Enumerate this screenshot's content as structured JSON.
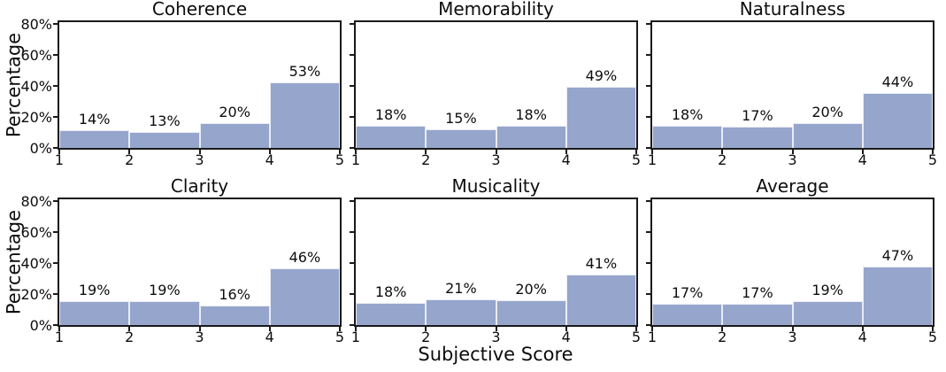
{
  "figure": {
    "ylabel": "Percentage",
    "xlabel": "Subjective Score",
    "colors": {
      "background": "#ffffff",
      "bar_fill": "#96a5cc",
      "bar_edge": "#e9ecf4",
      "axis": "#1a1a1a",
      "text": "#0d0d0d"
    }
  },
  "chart_data": {
    "type": "bar",
    "layout": "2x3 grid of histogram subplots, shared axes style",
    "xlabel": "Subjective Score",
    "ylabel": "Percentage",
    "x_bins": [
      "1-2",
      "2-3",
      "3-4",
      "4-5"
    ],
    "x_tick_labels": [
      "1",
      "2",
      "3",
      "4",
      "5"
    ],
    "y_tick_labels": [
      "0%",
      "20%",
      "40%",
      "60%",
      "80%"
    ],
    "y_tick_values": [
      0,
      20,
      40,
      60,
      80
    ],
    "ylim": [
      0,
      81
    ],
    "bar_display_scale": 0.8,
    "grid": false,
    "legend": false,
    "subplots": [
      {
        "title": "Coherence",
        "values": [
          14,
          13,
          20,
          53
        ],
        "labels": [
          "14%",
          "13%",
          "20%",
          "53%"
        ]
      },
      {
        "title": "Memorability",
        "values": [
          18,
          15,
          18,
          49
        ],
        "labels": [
          "18%",
          "15%",
          "18%",
          "49%"
        ]
      },
      {
        "title": "Naturalness",
        "values": [
          18,
          17,
          20,
          44
        ],
        "labels": [
          "18%",
          "17%",
          "20%",
          "44%"
        ]
      },
      {
        "title": "Clarity",
        "values": [
          19,
          19,
          16,
          46
        ],
        "labels": [
          "19%",
          "19%",
          "16%",
          "46%"
        ]
      },
      {
        "title": "Musicality",
        "values": [
          18,
          21,
          20,
          41
        ],
        "labels": [
          "18%",
          "21%",
          "20%",
          "41%"
        ]
      },
      {
        "title": "Average",
        "values": [
          17,
          17,
          19,
          47
        ],
        "labels": [
          "17%",
          "17%",
          "19%",
          "47%"
        ]
      }
    ]
  }
}
